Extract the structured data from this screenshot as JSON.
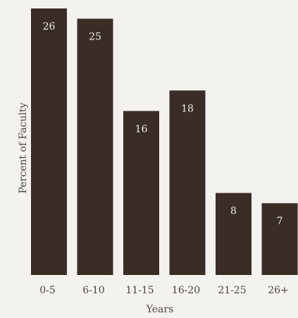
{
  "chart_data": {
    "type": "bar",
    "categories": [
      "0-5",
      "6-10",
      "11-15",
      "16-20",
      "21-25",
      "26+"
    ],
    "values": [
      26,
      25,
      16,
      18,
      8,
      7
    ],
    "xlabel": "Years",
    "ylabel": "Percent of Faculty",
    "ylim": [
      0,
      26
    ],
    "grid": false,
    "colors": {
      "bar": "#3a2d27",
      "value_label": "#f2efea",
      "text": "#4a4543"
    }
  }
}
